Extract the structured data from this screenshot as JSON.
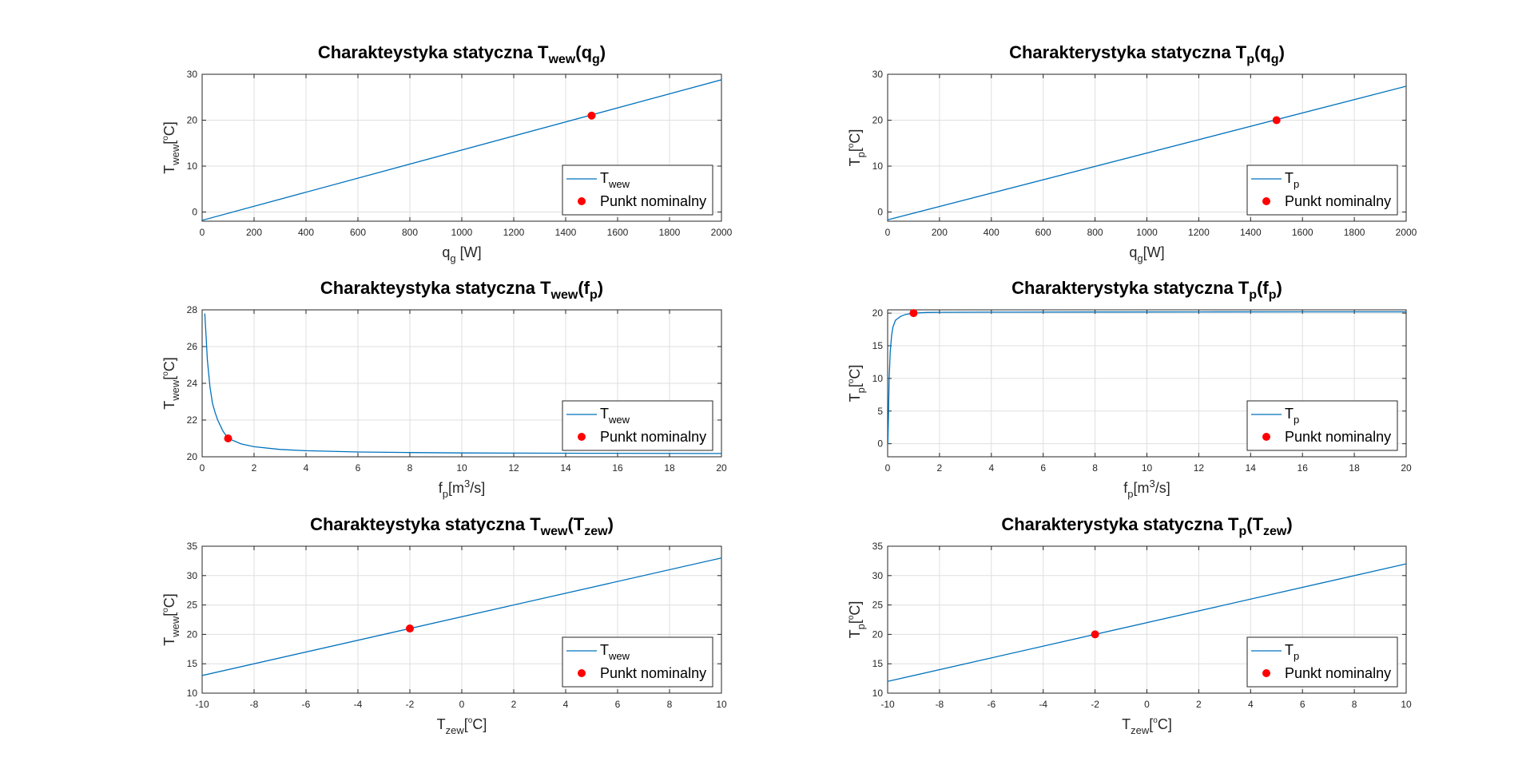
{
  "colors": {
    "line": "#0072BD",
    "marker": "#FF0000",
    "grid": "#DFDFDF",
    "axis": "#262626"
  },
  "chart_data": [
    {
      "type": "line",
      "title": {
        "base": "Charakteystyka statyczna T",
        "sub1": "wew",
        "mid": "(q",
        "sub2": "g",
        "end": ")"
      },
      "xlabel": {
        "base": "q",
        "sub": "g",
        "rest": " [W]"
      },
      "ylabel": {
        "base": "T",
        "sub": "wew",
        "rest": "[ C]",
        "deg": "o"
      },
      "xlim": [
        0,
        2000
      ],
      "ylim": [
        -2,
        30
      ],
      "xticks": [
        "0",
        "200",
        "400",
        "600",
        "800",
        "1000",
        "1200",
        "1400",
        "1600",
        "1800",
        "2000"
      ],
      "yticks": [
        "0",
        "10",
        "20",
        "30"
      ],
      "grid": true,
      "legend": {
        "location": "bottom-right",
        "line": {
          "base": "T",
          "sub": "wew"
        },
        "point": "Punkt nominalny"
      },
      "series": [
        {
          "x": [
            0,
            2000
          ],
          "y": [
            -1.8,
            28.8
          ]
        },
        {
          "type": "scatter",
          "x": [
            1500
          ],
          "y": [
            21
          ]
        }
      ]
    },
    {
      "type": "line",
      "title": {
        "base": "Charakterystyka statyczna T",
        "sub1": "p",
        "mid": "(q",
        "sub2": "g",
        "end": ")"
      },
      "xlabel": {
        "base": "q",
        "sub": "g",
        "rest": "[W]"
      },
      "ylabel": {
        "base": "T",
        "sub": "p",
        "rest": "[ C]",
        "deg": "o"
      },
      "xlim": [
        0,
        2000
      ],
      "ylim": [
        -2,
        30
      ],
      "xticks": [
        "0",
        "200",
        "400",
        "600",
        "800",
        "1000",
        "1200",
        "1400",
        "1600",
        "1800",
        "2000"
      ],
      "yticks": [
        "0",
        "10",
        "20",
        "30"
      ],
      "grid": true,
      "legend": {
        "location": "bottom-right",
        "line": {
          "base": "T",
          "sub": "p"
        },
        "point": "Punkt nominalny"
      },
      "series": [
        {
          "x": [
            0,
            2000
          ],
          "y": [
            -1.7,
            27.4
          ]
        },
        {
          "type": "scatter",
          "x": [
            1500
          ],
          "y": [
            20
          ]
        }
      ]
    },
    {
      "type": "line",
      "title": {
        "base": "Charakteystyka statyczna T",
        "sub1": "wew",
        "mid": "(f",
        "sub2": "p",
        "end": ")"
      },
      "xlabel": {
        "base": "f",
        "sub": "p",
        "rest": "[m",
        "sup": "3",
        "rest2": "/s]"
      },
      "ylabel": {
        "base": "T",
        "sub": "wew",
        "rest": "[ C]",
        "deg": "o"
      },
      "xlim": [
        0,
        20
      ],
      "ylim": [
        20,
        28
      ],
      "xticks": [
        "0",
        "2",
        "4",
        "6",
        "8",
        "10",
        "12",
        "14",
        "16",
        "18",
        "20"
      ],
      "yticks": [
        "20",
        "22",
        "24",
        "26",
        "28"
      ],
      "grid": true,
      "legend": {
        "location": "bottom-right",
        "line": {
          "base": "T",
          "sub": "wew"
        },
        "point": "Punkt nominalny"
      },
      "series": [
        {
          "x": [
            0.1,
            0.15,
            0.2,
            0.3,
            0.4,
            0.5,
            0.6,
            0.8,
            1,
            1.5,
            2,
            3,
            4,
            6,
            8,
            10,
            12,
            15,
            20
          ],
          "y": [
            27.8,
            26.6,
            25.3,
            23.8,
            22.9,
            22.4,
            22.0,
            21.4,
            21.0,
            20.7,
            20.55,
            20.4,
            20.33,
            20.26,
            20.23,
            20.21,
            20.2,
            20.19,
            20.18
          ]
        },
        {
          "type": "scatter",
          "x": [
            1
          ],
          "y": [
            21
          ]
        }
      ]
    },
    {
      "type": "line",
      "title": {
        "base": "Charakterystyka statyczna T",
        "sub1": "p",
        "mid": "(f",
        "sub2": "p",
        "end": ")"
      },
      "xlabel": {
        "base": "f",
        "sub": "p",
        "rest": "[m",
        "sup": "3",
        "rest2": "/s]"
      },
      "ylabel": {
        "base": "T",
        "sub": "p",
        "rest": "[ C]",
        "deg": "o"
      },
      "xlim": [
        0,
        20
      ],
      "ylim": [
        -2,
        20.5
      ],
      "xticks": [
        "0",
        "2",
        "4",
        "6",
        "8",
        "10",
        "12",
        "14",
        "16",
        "18",
        "20"
      ],
      "yticks": [
        "0",
        "5",
        "10",
        "15",
        "20"
      ],
      "grid": true,
      "legend": {
        "location": "bottom-right",
        "line": {
          "base": "T",
          "sub": "p"
        },
        "point": "Punkt nominalny"
      },
      "series": [
        {
          "x": [
            0.01,
            0.03,
            0.06,
            0.1,
            0.15,
            0.2,
            0.3,
            0.5,
            0.7,
            1,
            1.5,
            2,
            4,
            8,
            12,
            16,
            20
          ],
          "y": [
            0,
            4,
            10,
            14,
            16.5,
            17.8,
            18.9,
            19.5,
            19.8,
            20.0,
            20.1,
            20.12,
            20.15,
            20.17,
            20.18,
            20.19,
            20.19
          ]
        },
        {
          "type": "scatter",
          "x": [
            1
          ],
          "y": [
            20
          ]
        }
      ]
    },
    {
      "type": "line",
      "title": {
        "base": "Charakteystyka statyczna T",
        "sub1": "wew",
        "mid": "(T",
        "sub2": "zew",
        "end": ")"
      },
      "xlabel": {
        "base": "T",
        "sub": "zew",
        "rest": "[ C]",
        "deg": "o"
      },
      "ylabel": {
        "base": "T",
        "sub": "wew",
        "rest": "[ C]",
        "deg": "o"
      },
      "xlim": [
        -10,
        10
      ],
      "ylim": [
        10,
        35
      ],
      "xticks": [
        "-10",
        "-8",
        "-6",
        "-4",
        "-2",
        "0",
        "2",
        "4",
        "6",
        "8",
        "10"
      ],
      "yticks": [
        "10",
        "15",
        "20",
        "25",
        "30",
        "35"
      ],
      "grid": true,
      "legend": {
        "location": "bottom-right",
        "line": {
          "base": "T",
          "sub": "wew"
        },
        "point": "Punkt nominalny"
      },
      "series": [
        {
          "x": [
            -10,
            10
          ],
          "y": [
            13,
            33
          ]
        },
        {
          "type": "scatter",
          "x": [
            -2
          ],
          "y": [
            21
          ]
        }
      ]
    },
    {
      "type": "line",
      "title": {
        "base": "Charakterystyka statyczna T",
        "sub1": "p",
        "mid": "(T",
        "sub2": "zew",
        "end": ")"
      },
      "xlabel": {
        "base": "T",
        "sub": "zew",
        "rest": "[ C]",
        "deg": "o"
      },
      "ylabel": {
        "base": "T",
        "sub": "p",
        "rest": "[ C]",
        "deg": "o"
      },
      "xlim": [
        -10,
        10
      ],
      "ylim": [
        10,
        35
      ],
      "xticks": [
        "-10",
        "-8",
        "-6",
        "-4",
        "-2",
        "0",
        "2",
        "4",
        "6",
        "8",
        "10"
      ],
      "yticks": [
        "10",
        "15",
        "20",
        "25",
        "30",
        "35"
      ],
      "grid": true,
      "legend": {
        "location": "bottom-right",
        "line": {
          "base": "T",
          "sub": "p"
        },
        "point": "Punkt nominalny"
      },
      "series": [
        {
          "x": [
            -10,
            10
          ],
          "y": [
            12,
            32
          ]
        },
        {
          "type": "scatter",
          "x": [
            -2
          ],
          "y": [
            20
          ]
        }
      ]
    }
  ]
}
